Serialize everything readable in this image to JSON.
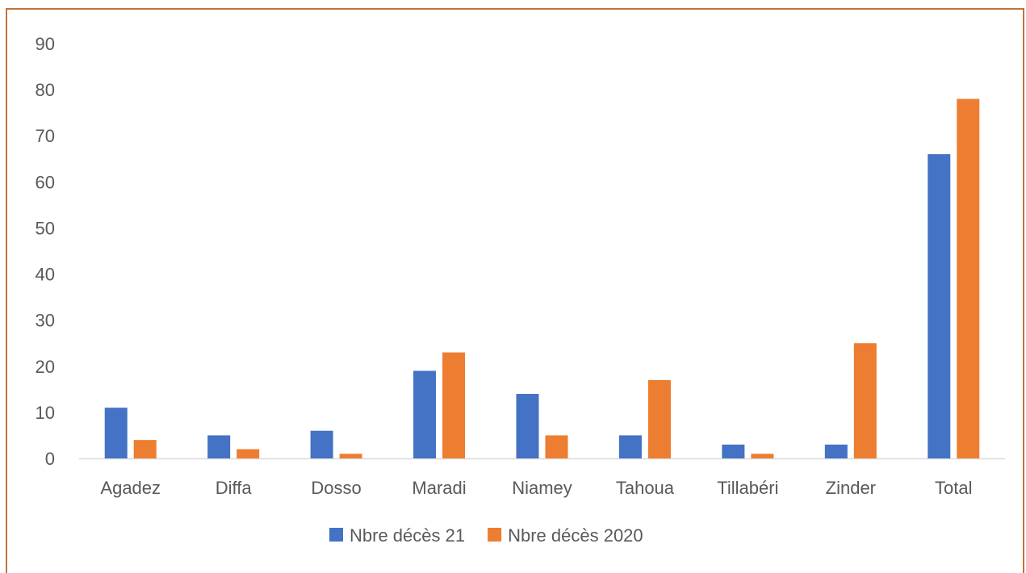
{
  "chart_data": {
    "type": "bar",
    "categories": [
      "Agadez",
      "Diffa",
      "Dosso",
      "Maradi",
      "Niamey",
      "Tahoua",
      "Tillabéri",
      "Zinder",
      "Total"
    ],
    "series": [
      {
        "name": "Nbre décès 21",
        "color": "#4472c4",
        "values": [
          11,
          5,
          6,
          19,
          14,
          5,
          3,
          3,
          66
        ]
      },
      {
        "name": "Nbre décès 2020",
        "color": "#ed7d31",
        "values": [
          4,
          2,
          1,
          23,
          5,
          17,
          1,
          25,
          78
        ]
      }
    ],
    "ylim": [
      0,
      90
    ],
    "yticks": [
      0,
      10,
      20,
      30,
      40,
      50,
      60,
      70,
      80,
      90
    ],
    "grid": false,
    "legend_position": "bottom",
    "title": "",
    "xlabel": "",
    "ylabel": ""
  },
  "colors": {
    "frame_border": "#c0743c",
    "axis_line": "#d9d9d9",
    "text": "#595959"
  }
}
